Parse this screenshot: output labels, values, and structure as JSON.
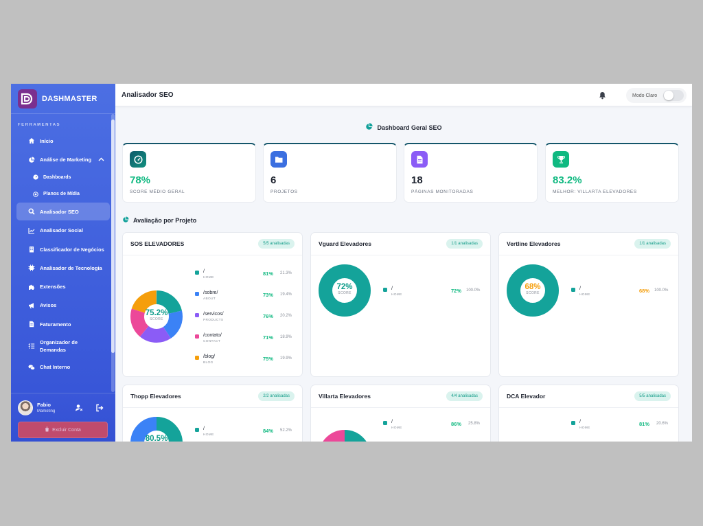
{
  "brand": {
    "name": "DASHMASTER"
  },
  "sidebar": {
    "section_label": "FERRAMENTAS",
    "items": [
      {
        "label": "Início",
        "icon": "home-icon"
      },
      {
        "label": "Análise de Marketing",
        "icon": "pie-chart-icon"
      },
      {
        "label": "Dashboards",
        "icon": "gauge-icon"
      },
      {
        "label": "Planos de Mídia",
        "icon": "target-icon"
      },
      {
        "label": "Analisador SEO",
        "icon": "search-icon"
      },
      {
        "label": "Analisador Social",
        "icon": "line-chart-icon"
      },
      {
        "label": "Classificador de Negócios",
        "icon": "building-icon"
      },
      {
        "label": "Analisador de Tecnologia",
        "icon": "chip-icon"
      },
      {
        "label": "Extensões",
        "icon": "puzzle-icon"
      },
      {
        "label": "Avisos",
        "icon": "megaphone-icon"
      },
      {
        "label": "Faturamento",
        "icon": "invoice-icon"
      },
      {
        "label": "Organizador de Demandas",
        "icon": "list-check-icon"
      },
      {
        "label": "Chat Interno",
        "icon": "chat-icon"
      }
    ]
  },
  "user": {
    "name": "Fabio",
    "role": "Marketing",
    "delete_label": "Excluir Conta"
  },
  "header": {
    "title": "Analisador SEO",
    "theme_label": "Modo Claro"
  },
  "dashboard": {
    "title": "Dashboard Geral SEO"
  },
  "stats": [
    {
      "value": "78%",
      "label": "SCORE MÉDIO GERAL",
      "icon": "speedometer-icon",
      "value_color": "#10b981",
      "icon_bg": "#0f5a6a"
    },
    {
      "value": "6",
      "label": "PROJETOS",
      "icon": "folder-icon",
      "value_color": "#1f2430",
      "icon_bg": "#3b6fe0"
    },
    {
      "value": "18",
      "label": "PÁGINAS MONITORADAS",
      "icon": "document-icon",
      "value_color": "#1f2430",
      "icon_bg": "#8b5cf6"
    },
    {
      "value": "83.2%",
      "label": "MELHOR: VILLARTA ELEVADORES",
      "icon": "trophy-icon",
      "value_color": "#10b981",
      "icon_bg": "#10b981"
    }
  ],
  "section": {
    "title": "Avaliação por Projeto"
  },
  "score_label": "SCORE",
  "projects": [
    {
      "name": "SOS ELEVADORES",
      "badge": "5/5 analisadas",
      "score": "75.2%",
      "pages": [
        {
          "path": "/",
          "tag": "HOME",
          "score": "81%",
          "share": "21.3%",
          "color": "#14a39a"
        },
        {
          "path": "/sobre/",
          "tag": "ABOUT",
          "score": "73%",
          "share": "19.4%",
          "color": "#3b82f6"
        },
        {
          "path": "/servicos/",
          "tag": "PRODUCTS",
          "score": "76%",
          "share": "20.2%",
          "color": "#8b5cf6"
        },
        {
          "path": "/contato/",
          "tag": "CONTACT",
          "score": "71%",
          "share": "18.9%",
          "color": "#ec4899"
        },
        {
          "path": "/blog/",
          "tag": "BLOG",
          "score": "75%",
          "share": "19.9%",
          "color": "#f59e0b"
        }
      ]
    },
    {
      "name": "Vguard Elevadores",
      "badge": "1/1 analisadas",
      "score": "72%",
      "pages": [
        {
          "path": "/",
          "tag": "HOME",
          "score": "72%",
          "share": "100.0%",
          "color": "#14a39a"
        }
      ]
    },
    {
      "name": "Vertline Elevadores",
      "badge": "1/1 analisadas",
      "score": "68%",
      "pages": [
        {
          "path": "/",
          "tag": "HOME",
          "score": "68%",
          "share": "100.0%",
          "color": "#14a39a"
        }
      ]
    },
    {
      "name": "Thopp Elevadores",
      "badge": "2/2 analisadas",
      "score": "80.5%",
      "pages": [
        {
          "path": "/",
          "tag": "HOME",
          "score": "84%",
          "share": "52.2%",
          "color": "#14a39a"
        }
      ]
    },
    {
      "name": "Villarta Elevadores",
      "badge": "4/4 analisadas",
      "pages": [
        {
          "path": "/",
          "tag": "HOME",
          "score": "86%",
          "share": "25.8%",
          "color": "#14a39a"
        }
      ]
    },
    {
      "name": "DCA Elevador",
      "badge": "5/5 analisadas",
      "pages": [
        {
          "path": "/",
          "tag": "HOME",
          "score": "81%",
          "share": "20.6%",
          "color": "#14a39a"
        }
      ]
    }
  ]
}
